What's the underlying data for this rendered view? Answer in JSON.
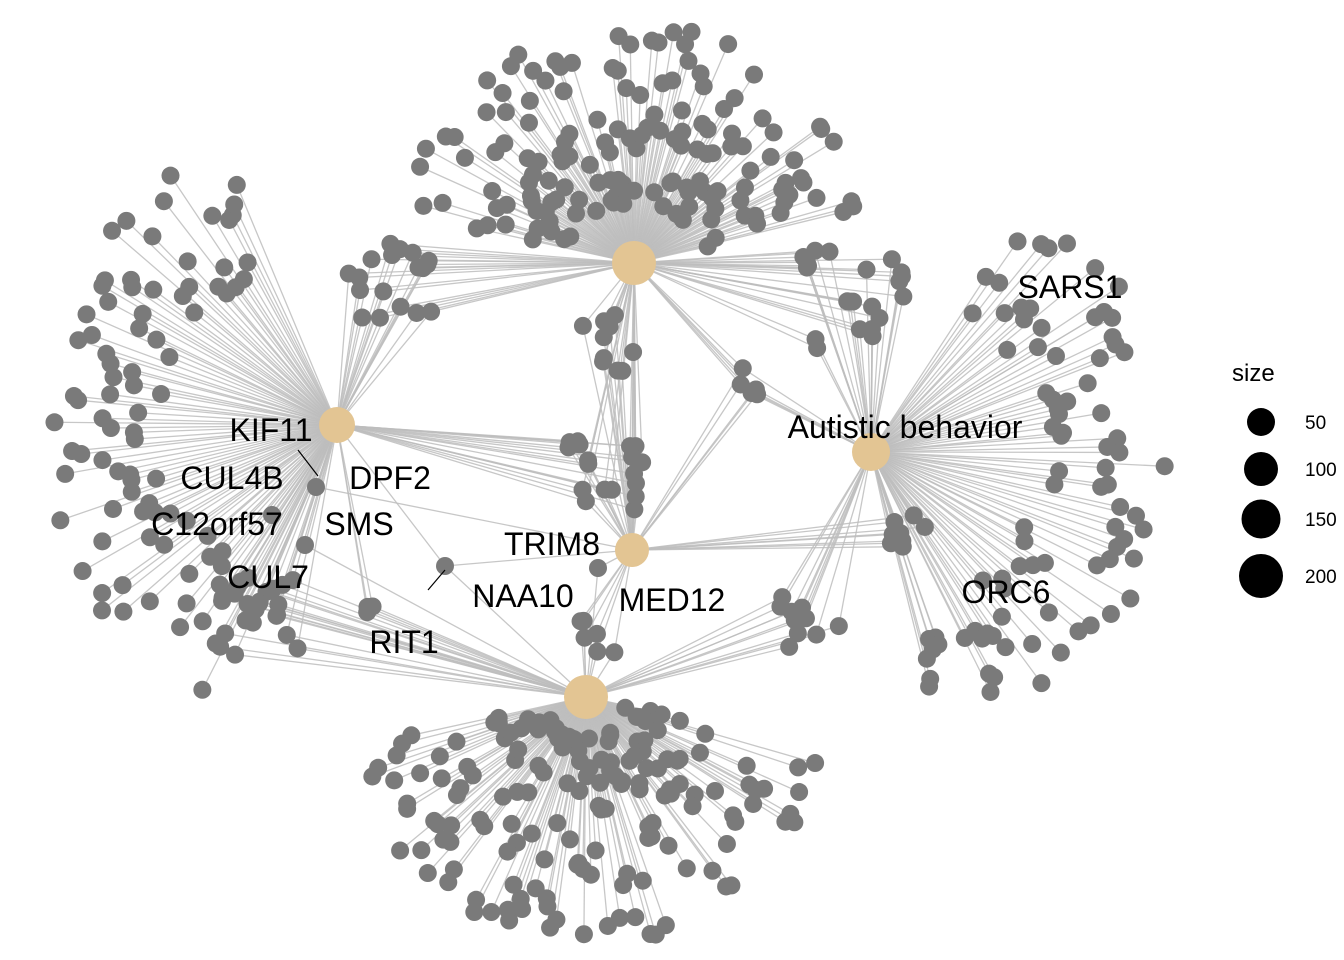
{
  "colors": {
    "edge": "#bdbdbd",
    "gene_node": "#7a7a7a",
    "hub_node": "#e3c593",
    "leader": "#000000"
  },
  "hubs": [
    {
      "id": "hub-top",
      "label": ""
    },
    {
      "id": "hub-left",
      "label": ""
    },
    {
      "id": "hub-autistic",
      "label": "Autistic behavior"
    },
    {
      "id": "hub-center",
      "label": ""
    },
    {
      "id": "hub-bottom",
      "label": ""
    }
  ],
  "gene_labels": [
    "KIF11",
    "CUL4B",
    "DPF2",
    "C12orf57",
    "SMS",
    "CUL7",
    "TRIM8",
    "NAA10",
    "MED12",
    "RIT1",
    "SARS1",
    "ORC6"
  ],
  "legend": {
    "title": "size",
    "items": [
      {
        "label": "50",
        "value": 50
      },
      {
        "label": "100",
        "value": 100
      },
      {
        "label": "150",
        "value": 150
      },
      {
        "label": "200",
        "value": 200
      }
    ]
  }
}
